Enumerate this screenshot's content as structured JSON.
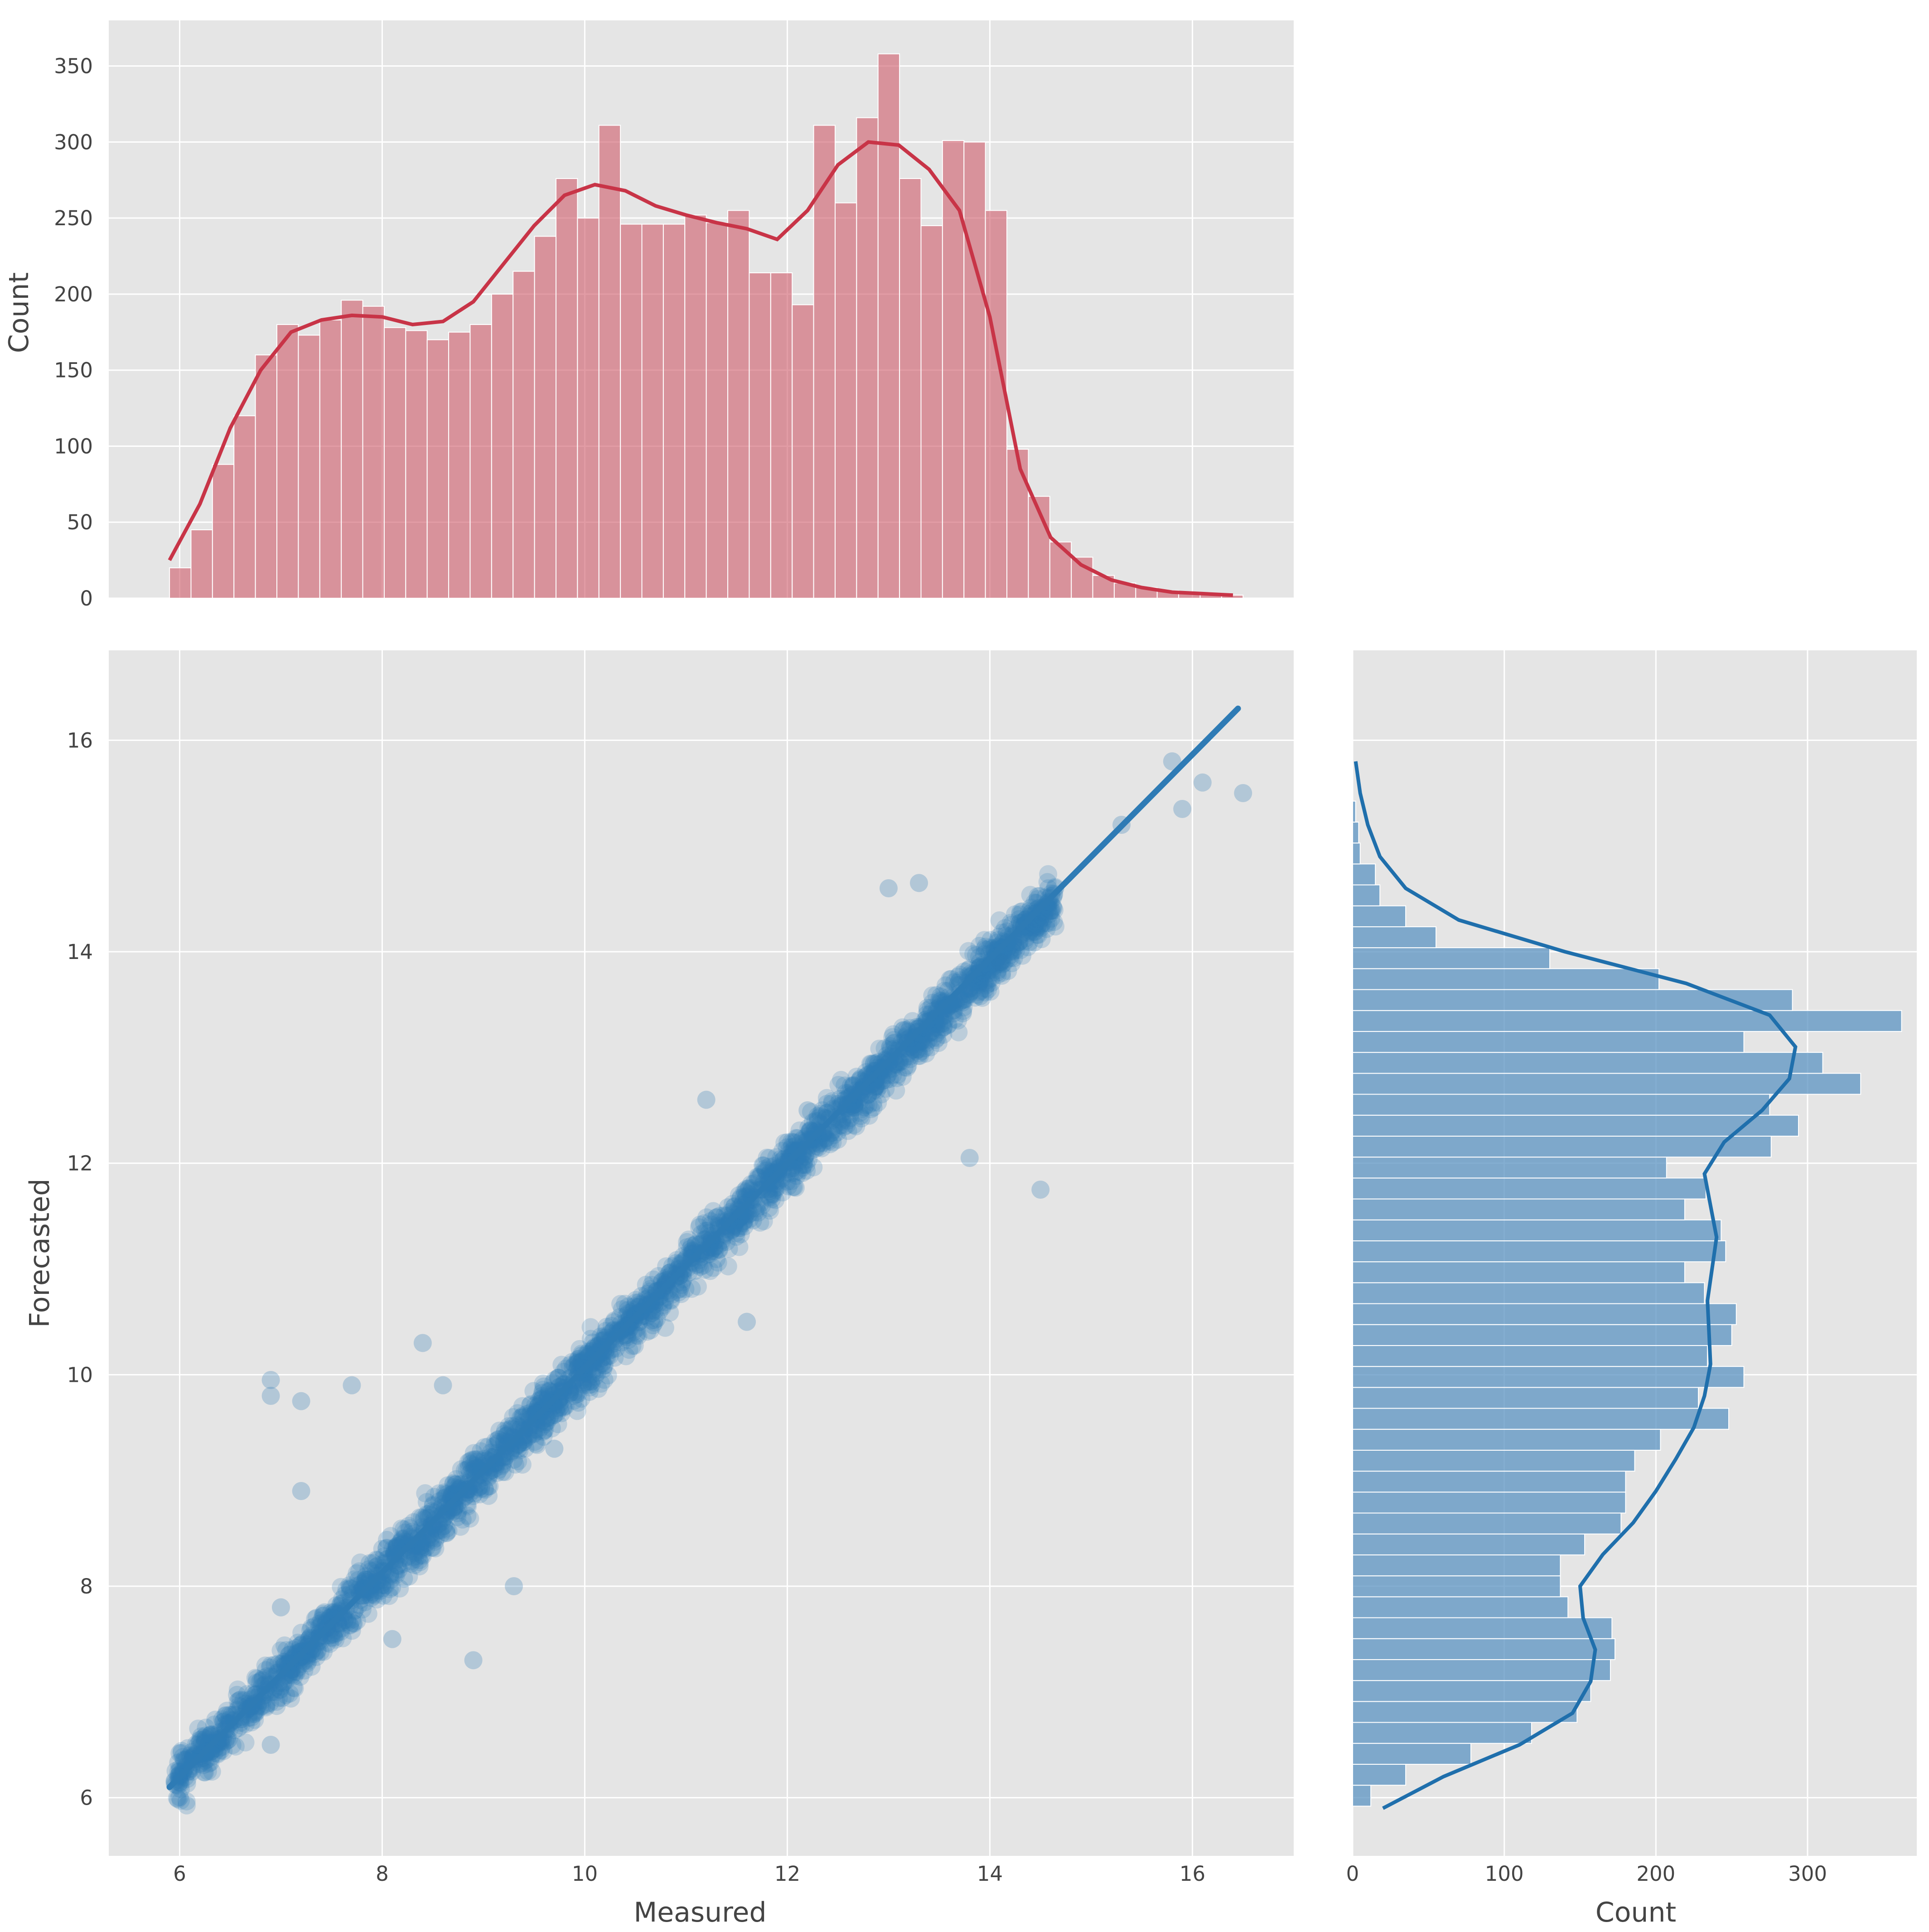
{
  "colors": {
    "panel_background": "#e5e5e5",
    "grid": "#ffffff",
    "top_histogram": "#d0606e",
    "top_kde": "#c83447",
    "scatter": "#2e7bb5",
    "right_histogram": "#5b93c2",
    "right_kde": "#1f6fac"
  },
  "chart_data": [
    {
      "panel": "top-marginal",
      "type": "bar",
      "subtype": "histogram-with-kde",
      "xlabel": "",
      "ylabel": "Count",
      "xlim": [
        5.3,
        17.0
      ],
      "ylim": [
        0,
        380
      ],
      "yticks": [
        0,
        50,
        100,
        150,
        200,
        250,
        300,
        350
      ],
      "grid": true,
      "bin_edges_start": 5.9,
      "bin_width": 0.212,
      "values": [
        20,
        45,
        88,
        120,
        160,
        180,
        173,
        183,
        196,
        192,
        178,
        176,
        170,
        175,
        180,
        200,
        215,
        238,
        276,
        250,
        311,
        246,
        246,
        246,
        252,
        247,
        255,
        214,
        214,
        193,
        311,
        260,
        316,
        358,
        276,
        245,
        301,
        300,
        255,
        98,
        67,
        37,
        27,
        15,
        10,
        7,
        5,
        4,
        3,
        2
      ],
      "kde": {
        "x": [
          5.9,
          6.2,
          6.5,
          6.8,
          7.1,
          7.4,
          7.7,
          8.0,
          8.3,
          8.6,
          8.9,
          9.2,
          9.5,
          9.8,
          10.1,
          10.4,
          10.7,
          11.0,
          11.3,
          11.6,
          11.9,
          12.2,
          12.5,
          12.8,
          13.1,
          13.4,
          13.7,
          14.0,
          14.3,
          14.6,
          14.9,
          15.2,
          15.5,
          15.8,
          16.1,
          16.4
        ],
        "y": [
          25,
          62,
          112,
          150,
          175,
          183,
          186,
          185,
          180,
          182,
          195,
          220,
          245,
          265,
          272,
          268,
          258,
          252,
          247,
          243,
          236,
          255,
          285,
          300,
          298,
          282,
          255,
          185,
          85,
          40,
          22,
          12,
          7,
          4,
          3,
          2
        ]
      }
    },
    {
      "panel": "joint",
      "type": "scatter",
      "xlabel": "Measured",
      "ylabel": "Forecasted",
      "xlim": [
        5.3,
        17.0
      ],
      "ylim": [
        5.45,
        16.85
      ],
      "xticks": [
        6,
        8,
        10,
        12,
        14,
        16
      ],
      "yticks": [
        6,
        8,
        10,
        12,
        14,
        16
      ],
      "grid": true,
      "trend": {
        "slope": 0.96,
        "intercept": 0.45
      },
      "fit_line": {
        "x": [
          5.9,
          16.45
        ],
        "y": [
          6.1,
          16.3
        ]
      },
      "notable_points": {
        "x": [
          6.9,
          6.9,
          7.2,
          7.7,
          8.4,
          7.2,
          8.6,
          10.9,
          11.2,
          12.2,
          14.5,
          13.8,
          10.8,
          11.6,
          15.8,
          16.1,
          16.5,
          15.9,
          15.3,
          7.0,
          7.5,
          9.3,
          8.1,
          8.9,
          13.3,
          13.0,
          9.7,
          6.9,
          14.1
        ],
        "y": [
          9.95,
          9.8,
          9.75,
          9.9,
          10.3,
          8.9,
          9.9,
          10.95,
          12.6,
          12.5,
          11.75,
          12.05,
          10.85,
          10.5,
          15.8,
          15.6,
          15.5,
          15.35,
          15.2,
          7.8,
          7.6,
          8.0,
          7.5,
          7.3,
          14.65,
          14.6,
          9.3,
          6.5,
          13.9
        ]
      }
    },
    {
      "panel": "right-marginal",
      "type": "bar",
      "orientation": "horizontal",
      "subtype": "histogram-with-kde",
      "xlabel": "Count",
      "ylabel": "",
      "xlim": [
        0,
        372
      ],
      "ylim": [
        5.45,
        16.85
      ],
      "xticks": [
        0,
        100,
        200,
        300
      ],
      "grid": true,
      "bin_edges_start": 5.92,
      "bin_width": 0.198,
      "values": [
        12,
        35,
        78,
        118,
        148,
        157,
        170,
        173,
        171,
        142,
        137,
        137,
        153,
        177,
        180,
        180,
        186,
        203,
        248,
        228,
        258,
        234,
        250,
        253,
        232,
        219,
        246,
        243,
        219,
        233,
        207,
        276,
        294,
        275,
        335,
        310,
        258,
        362,
        290,
        202,
        130,
        55,
        35,
        18,
        15,
        5,
        4,
        2
      ],
      "kde": {
        "y": [
          5.9,
          6.2,
          6.5,
          6.8,
          7.1,
          7.4,
          7.7,
          8.0,
          8.3,
          8.6,
          8.9,
          9.2,
          9.5,
          9.8,
          10.1,
          10.4,
          10.7,
          11.0,
          11.3,
          11.6,
          11.9,
          12.2,
          12.5,
          12.8,
          13.1,
          13.4,
          13.7,
          14.0,
          14.3,
          14.6,
          14.9,
          15.2,
          15.5,
          15.8
        ],
        "x": [
          20,
          60,
          110,
          145,
          157,
          160,
          152,
          150,
          165,
          185,
          200,
          213,
          225,
          232,
          236,
          235,
          234,
          237,
          240,
          236,
          232,
          245,
          270,
          288,
          292,
          275,
          220,
          140,
          70,
          35,
          18,
          10,
          5,
          2
        ]
      }
    }
  ]
}
